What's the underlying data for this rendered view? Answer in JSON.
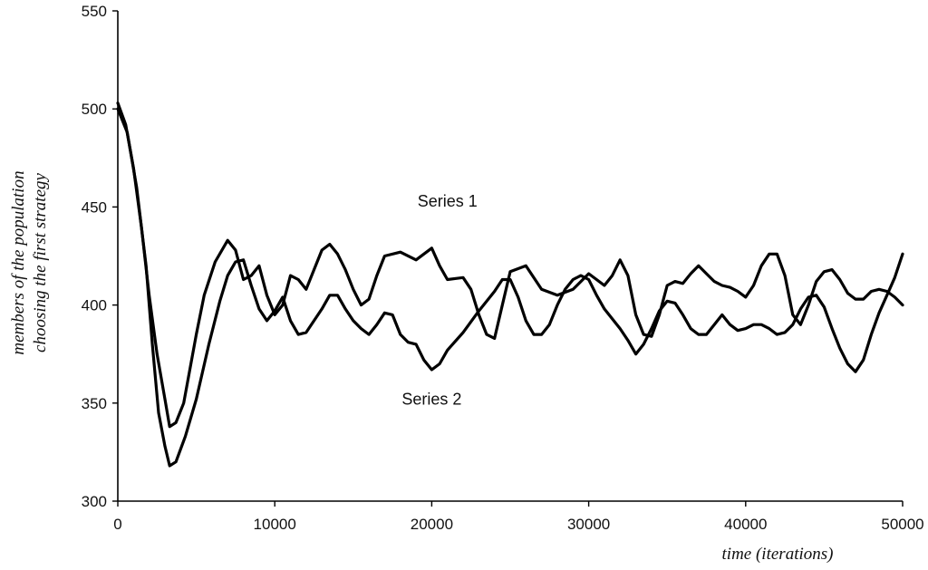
{
  "chart_data": {
    "type": "line",
    "title": "",
    "xlabel": "time (iterations)",
    "ylabel_lines": [
      "members of the population",
      "choosing the first strategy"
    ],
    "xlim": [
      0,
      50000
    ],
    "ylim": [
      300,
      550
    ],
    "xticks": [
      0,
      10000,
      20000,
      30000,
      40000,
      50000
    ],
    "yticks": [
      300,
      350,
      400,
      450,
      500,
      550
    ],
    "grid": false,
    "legend": "none",
    "annotations": [
      {
        "text": "Series 1",
        "x": 21000,
        "y": 453
      },
      {
        "text": "Series 2",
        "x": 20000,
        "y": 352
      }
    ],
    "series": [
      {
        "name": "Series 1",
        "color": "#000000",
        "points": [
          [
            0,
            503
          ],
          [
            500,
            492
          ],
          [
            1000,
            470
          ],
          [
            1500,
            440
          ],
          [
            2000,
            405
          ],
          [
            2500,
            375
          ],
          [
            3000,
            352
          ],
          [
            3300,
            338
          ],
          [
            3700,
            340
          ],
          [
            4200,
            350
          ],
          [
            5000,
            385
          ],
          [
            5500,
            405
          ],
          [
            6200,
            422
          ],
          [
            7000,
            433
          ],
          [
            7500,
            428
          ],
          [
            8000,
            413
          ],
          [
            8500,
            415
          ],
          [
            9000,
            420
          ],
          [
            9500,
            405
          ],
          [
            10000,
            395
          ],
          [
            10500,
            400
          ],
          [
            11000,
            415
          ],
          [
            11500,
            413
          ],
          [
            12000,
            408
          ],
          [
            12500,
            418
          ],
          [
            13000,
            428
          ],
          [
            13500,
            431
          ],
          [
            14000,
            426
          ],
          [
            14500,
            418
          ],
          [
            15000,
            408
          ],
          [
            15500,
            400
          ],
          [
            16000,
            403
          ],
          [
            16500,
            415
          ],
          [
            17000,
            425
          ],
          [
            18000,
            427
          ],
          [
            19000,
            423
          ],
          [
            20000,
            429
          ],
          [
            20500,
            420
          ],
          [
            21000,
            413
          ],
          [
            22000,
            414
          ],
          [
            22500,
            408
          ],
          [
            23000,
            395
          ],
          [
            23500,
            385
          ],
          [
            24000,
            383
          ],
          [
            24500,
            400
          ],
          [
            25000,
            417
          ],
          [
            26000,
            420
          ],
          [
            27000,
            408
          ],
          [
            28000,
            405
          ],
          [
            29000,
            408
          ],
          [
            30000,
            416
          ],
          [
            30500,
            413
          ],
          [
            31000,
            410
          ],
          [
            31500,
            415
          ],
          [
            32000,
            423
          ],
          [
            32500,
            415
          ],
          [
            33000,
            395
          ],
          [
            33500,
            385
          ],
          [
            34000,
            384
          ],
          [
            34500,
            395
          ],
          [
            35000,
            410
          ],
          [
            35500,
            412
          ],
          [
            36000,
            411
          ],
          [
            36500,
            416
          ],
          [
            37000,
            420
          ],
          [
            37500,
            416
          ],
          [
            38000,
            412
          ],
          [
            38500,
            410
          ],
          [
            39000,
            409
          ],
          [
            39500,
            407
          ],
          [
            40000,
            404
          ],
          [
            40500,
            410
          ],
          [
            41000,
            420
          ],
          [
            41500,
            426
          ],
          [
            42000,
            426
          ],
          [
            42500,
            415
          ],
          [
            43000,
            395
          ],
          [
            43500,
            390
          ],
          [
            44000,
            400
          ],
          [
            44500,
            412
          ],
          [
            45000,
            417
          ],
          [
            45500,
            418
          ],
          [
            46000,
            413
          ],
          [
            46500,
            406
          ],
          [
            47000,
            403
          ],
          [
            47500,
            403
          ],
          [
            48000,
            407
          ],
          [
            48500,
            408
          ],
          [
            49000,
            407
          ],
          [
            49500,
            404
          ],
          [
            50000,
            400
          ]
        ]
      },
      {
        "name": "Series 2",
        "color": "#000000",
        "points": [
          [
            0,
            500
          ],
          [
            600,
            488
          ],
          [
            1200,
            460
          ],
          [
            1800,
            420
          ],
          [
            2200,
            380
          ],
          [
            2600,
            345
          ],
          [
            3000,
            328
          ],
          [
            3300,
            318
          ],
          [
            3700,
            320
          ],
          [
            4300,
            333
          ],
          [
            5000,
            352
          ],
          [
            5800,
            380
          ],
          [
            6500,
            402
          ],
          [
            7000,
            415
          ],
          [
            7500,
            422
          ],
          [
            8000,
            423
          ],
          [
            8500,
            410
          ],
          [
            9000,
            398
          ],
          [
            9500,
            392
          ],
          [
            10000,
            397
          ],
          [
            10500,
            404
          ],
          [
            11000,
            392
          ],
          [
            11500,
            385
          ],
          [
            12000,
            386
          ],
          [
            13000,
            398
          ],
          [
            13500,
            405
          ],
          [
            14000,
            405
          ],
          [
            14500,
            398
          ],
          [
            15000,
            392
          ],
          [
            15500,
            388
          ],
          [
            16000,
            385
          ],
          [
            16500,
            390
          ],
          [
            17000,
            396
          ],
          [
            17500,
            395
          ],
          [
            18000,
            385
          ],
          [
            18500,
            381
          ],
          [
            19000,
            380
          ],
          [
            19500,
            372
          ],
          [
            20000,
            367
          ],
          [
            20500,
            370
          ],
          [
            21000,
            377
          ],
          [
            22000,
            386
          ],
          [
            23000,
            397
          ],
          [
            24000,
            407
          ],
          [
            24500,
            413
          ],
          [
            25000,
            413
          ],
          [
            25500,
            404
          ],
          [
            26000,
            392
          ],
          [
            26500,
            385
          ],
          [
            27000,
            385
          ],
          [
            27500,
            390
          ],
          [
            28000,
            400
          ],
          [
            28500,
            408
          ],
          [
            29000,
            413
          ],
          [
            29500,
            415
          ],
          [
            30000,
            413
          ],
          [
            30500,
            405
          ],
          [
            31000,
            398
          ],
          [
            32000,
            388
          ],
          [
            32500,
            382
          ],
          [
            33000,
            375
          ],
          [
            33500,
            380
          ],
          [
            34000,
            388
          ],
          [
            34500,
            397
          ],
          [
            35000,
            402
          ],
          [
            35500,
            401
          ],
          [
            36000,
            395
          ],
          [
            36500,
            388
          ],
          [
            37000,
            385
          ],
          [
            37500,
            385
          ],
          [
            38000,
            390
          ],
          [
            38500,
            395
          ],
          [
            39000,
            390
          ],
          [
            39500,
            387
          ],
          [
            40000,
            388
          ],
          [
            40500,
            390
          ],
          [
            41000,
            390
          ],
          [
            41500,
            388
          ],
          [
            42000,
            385
          ],
          [
            42500,
            386
          ],
          [
            43000,
            390
          ],
          [
            43500,
            398
          ],
          [
            44000,
            404
          ],
          [
            44500,
            405
          ],
          [
            45000,
            399
          ],
          [
            45500,
            388
          ],
          [
            46000,
            378
          ],
          [
            46500,
            370
          ],
          [
            47000,
            366
          ],
          [
            47500,
            372
          ],
          [
            48000,
            385
          ],
          [
            48500,
            396
          ],
          [
            49000,
            405
          ],
          [
            49500,
            414
          ],
          [
            50000,
            426
          ]
        ]
      }
    ]
  }
}
